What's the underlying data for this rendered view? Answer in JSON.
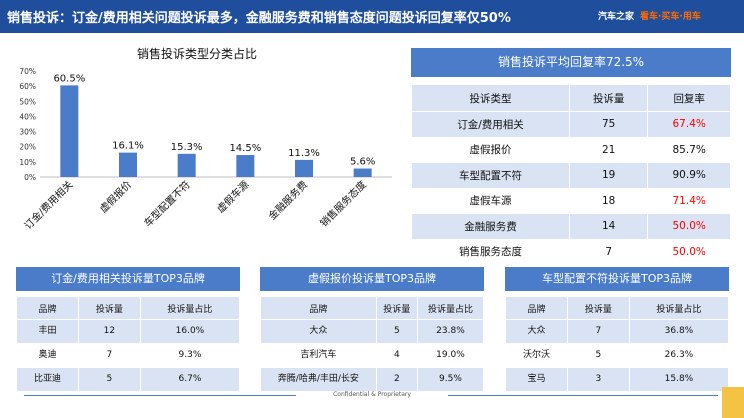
{
  "header": {
    "title": "销售投诉：订金/费用相关问题投诉最多，金融服务费和销售态度问题投诉回复率仅50%",
    "logo_name": "汽车之家",
    "logo_slogan": "看车·买车·用车"
  },
  "colors": {
    "header_bg": "#1f4e9c",
    "bar": "#4a7cc9",
    "table_stripe": "#dae3f3",
    "low_rate": "#ff0000"
  },
  "chart_data": {
    "type": "bar",
    "title": "销售投诉类型分类占比",
    "categories": [
      "订金/费用相关",
      "虚假报价",
      "车型配置不符",
      "虚假车源",
      "金融服务费",
      "销售服务态度"
    ],
    "values": [
      60.5,
      16.1,
      15.3,
      14.5,
      11.3,
      5.6
    ],
    "value_labels": [
      "60.5%",
      "16.1%",
      "15.3%",
      "14.5%",
      "11.3%",
      "5.6%"
    ],
    "ylim": [
      0,
      70
    ],
    "yticks": [
      "0%",
      "10%",
      "20%",
      "30%",
      "40%",
      "50%",
      "60%",
      "70%"
    ],
    "grid": false,
    "legend": false
  },
  "avg_panel": {
    "title": "销售投诉平均回复率72.5%",
    "headers": [
      "投诉类型",
      "投诉量",
      "回复率"
    ],
    "rows": [
      {
        "type": "订金/费用相关",
        "count": "75",
        "rate": "67.4%",
        "highlight": true
      },
      {
        "type": "虚假报价",
        "count": "21",
        "rate": "85.7%",
        "highlight": false
      },
      {
        "type": "车型配置不符",
        "count": "19",
        "rate": "90.9%",
        "highlight": false
      },
      {
        "type": "虚假车源",
        "count": "18",
        "rate": "71.4%",
        "highlight": true
      },
      {
        "type": "金融服务费",
        "count": "14",
        "rate": "50.0%",
        "highlight": true
      },
      {
        "type": "销售服务态度",
        "count": "7",
        "rate": "50.0%",
        "highlight": true
      }
    ]
  },
  "brand_tables": [
    {
      "title": "订金/费用相关投诉量TOP3品牌",
      "headers": [
        "品牌",
        "投诉量",
        "投诉量占比"
      ],
      "rows": [
        [
          "丰田",
          "12",
          "16.0%"
        ],
        [
          "奥迪",
          "7",
          "9.3%"
        ],
        [
          "比亚迪",
          "5",
          "6.7%"
        ]
      ]
    },
    {
      "title": "虚假报价投诉量TOP3品牌",
      "headers": [
        "品牌",
        "投诉量",
        "投诉量占比"
      ],
      "rows": [
        [
          "大众",
          "5",
          "23.8%"
        ],
        [
          "吉利汽车",
          "4",
          "19.0%"
        ],
        [
          "奔腾/哈弗/丰田/长安",
          "2",
          "9.5%"
        ]
      ]
    },
    {
      "title": "车型配置不符投诉量TOP3品牌",
      "headers": [
        "品牌",
        "投诉量",
        "投诉量占比"
      ],
      "rows": [
        [
          "大众",
          "7",
          "36.8%"
        ],
        [
          "沃尔沃",
          "5",
          "26.3%"
        ],
        [
          "宝马",
          "3",
          "15.8%"
        ]
      ]
    }
  ],
  "footer": {
    "text": "Confidential & Proprietary"
  }
}
